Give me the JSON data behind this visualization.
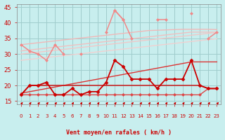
{
  "background_color": "#c8eeee",
  "grid_color": "#a0cccc",
  "xlabel": "Vent moyen/en rafales ( km/h )",
  "xlabel_color": "#cc0000",
  "tick_color": "#cc0000",
  "ylim": [
    14,
    46
  ],
  "yticks": [
    15,
    20,
    25,
    30,
    35,
    40,
    45
  ],
  "xlim": [
    -0.5,
    23.5
  ],
  "x_values": [
    0,
    1,
    2,
    3,
    4,
    5,
    6,
    7,
    8,
    9,
    10,
    11,
    12,
    13,
    14,
    15,
    16,
    17,
    18,
    19,
    20,
    21,
    22,
    23
  ],
  "series": [
    {
      "y": [
        33,
        31,
        30,
        28,
        33,
        30,
        null,
        30,
        null,
        null,
        37,
        44,
        41,
        35,
        null,
        null,
        41,
        41,
        null,
        null,
        43,
        null,
        35,
        37
      ],
      "color": "#f08888",
      "linewidth": 1.1,
      "marker": "D",
      "markersize": 2.0,
      "linestyle": "-",
      "zorder": 3
    },
    {
      "y": [
        null,
        null,
        null,
        null,
        null,
        null,
        null,
        null,
        null,
        null,
        null,
        44,
        41,
        null,
        null,
        null,
        null,
        null,
        null,
        null,
        null,
        null,
        null,
        null
      ],
      "color": "#f08888",
      "linewidth": 1.1,
      "marker": "D",
      "markersize": 2.0,
      "linestyle": "-",
      "zorder": 3
    },
    {
      "y": [
        33.0,
        33.3,
        33.6,
        33.9,
        34.2,
        34.5,
        34.8,
        35.1,
        35.4,
        35.7,
        36.0,
        36.3,
        36.6,
        36.9,
        37.2,
        37.5,
        37.6,
        37.7,
        37.8,
        37.9,
        37.9,
        37.9,
        37.9,
        37.8
      ],
      "color": "#f0b8b8",
      "linewidth": 1.0,
      "marker": null,
      "markersize": 0,
      "linestyle": "-",
      "zorder": 1
    },
    {
      "y": [
        31.0,
        31.3,
        31.6,
        31.9,
        32.2,
        32.5,
        32.8,
        33.1,
        33.4,
        33.7,
        34.0,
        34.3,
        34.6,
        34.9,
        35.2,
        35.5,
        35.8,
        36.1,
        36.4,
        36.7,
        37.0,
        37.0,
        37.0,
        37.0
      ],
      "color": "#f0c0c0",
      "linewidth": 1.0,
      "marker": null,
      "markersize": 0,
      "linestyle": "-",
      "zorder": 1
    },
    {
      "y": [
        30.0,
        30.3,
        30.6,
        30.9,
        31.2,
        31.5,
        31.8,
        32.1,
        32.4,
        32.7,
        33.0,
        33.3,
        33.6,
        33.9,
        34.2,
        34.5,
        34.8,
        35.1,
        35.4,
        35.7,
        36.0,
        36.3,
        36.6,
        36.9
      ],
      "color": "#f0c8c8",
      "linewidth": 1.0,
      "marker": null,
      "markersize": 0,
      "linestyle": "-",
      "zorder": 1
    },
    {
      "y": [
        28.0,
        28.3,
        28.6,
        28.9,
        29.2,
        29.5,
        29.8,
        30.1,
        30.4,
        30.7,
        31.0,
        31.3,
        31.6,
        31.9,
        32.2,
        32.5,
        32.8,
        33.1,
        33.4,
        33.7,
        34.0,
        34.3,
        34.6,
        34.9
      ],
      "color": "#f0d0d0",
      "linewidth": 1.0,
      "marker": null,
      "markersize": 0,
      "linestyle": "-",
      "zorder": 1
    },
    {
      "y": [
        17,
        20,
        20,
        21,
        17,
        17,
        19,
        17,
        18,
        18,
        21,
        28,
        26,
        22,
        22,
        22,
        19,
        22,
        22,
        22,
        28,
        20,
        19,
        19
      ],
      "color": "#cc0000",
      "linewidth": 1.3,
      "marker": "D",
      "markersize": 2.5,
      "linestyle": "-",
      "zorder": 4
    },
    {
      "y": [
        17.5,
        18.0,
        18.5,
        19.0,
        19.5,
        20.0,
        20.5,
        21.0,
        21.5,
        22.0,
        22.5,
        23.0,
        23.5,
        24.0,
        24.5,
        25.0,
        25.5,
        26.0,
        26.5,
        27.0,
        27.5,
        27.5,
        27.5,
        27.5
      ],
      "color": "#dd3333",
      "linewidth": 1.0,
      "marker": null,
      "markersize": 0,
      "linestyle": "-",
      "zorder": 2
    },
    {
      "y": [
        17,
        20,
        20,
        20,
        20,
        20,
        20,
        20,
        20,
        20,
        20,
        20,
        20,
        20,
        20,
        20,
        20,
        20,
        20,
        20,
        20,
        20,
        19,
        19
      ],
      "color": "#cc0000",
      "linewidth": 1.0,
      "marker": null,
      "markersize": 0,
      "linestyle": "-",
      "zorder": 2
    },
    {
      "y": [
        17,
        17,
        17,
        17,
        17,
        17,
        17,
        17,
        17,
        17,
        17,
        17,
        17,
        17,
        17,
        17,
        17,
        17,
        17,
        17,
        17,
        17,
        19,
        19
      ],
      "color": "#dd4444",
      "linewidth": 1.0,
      "marker": "D",
      "markersize": 2.0,
      "linestyle": "-",
      "zorder": 2
    }
  ],
  "arrow_color": "#cc0000"
}
